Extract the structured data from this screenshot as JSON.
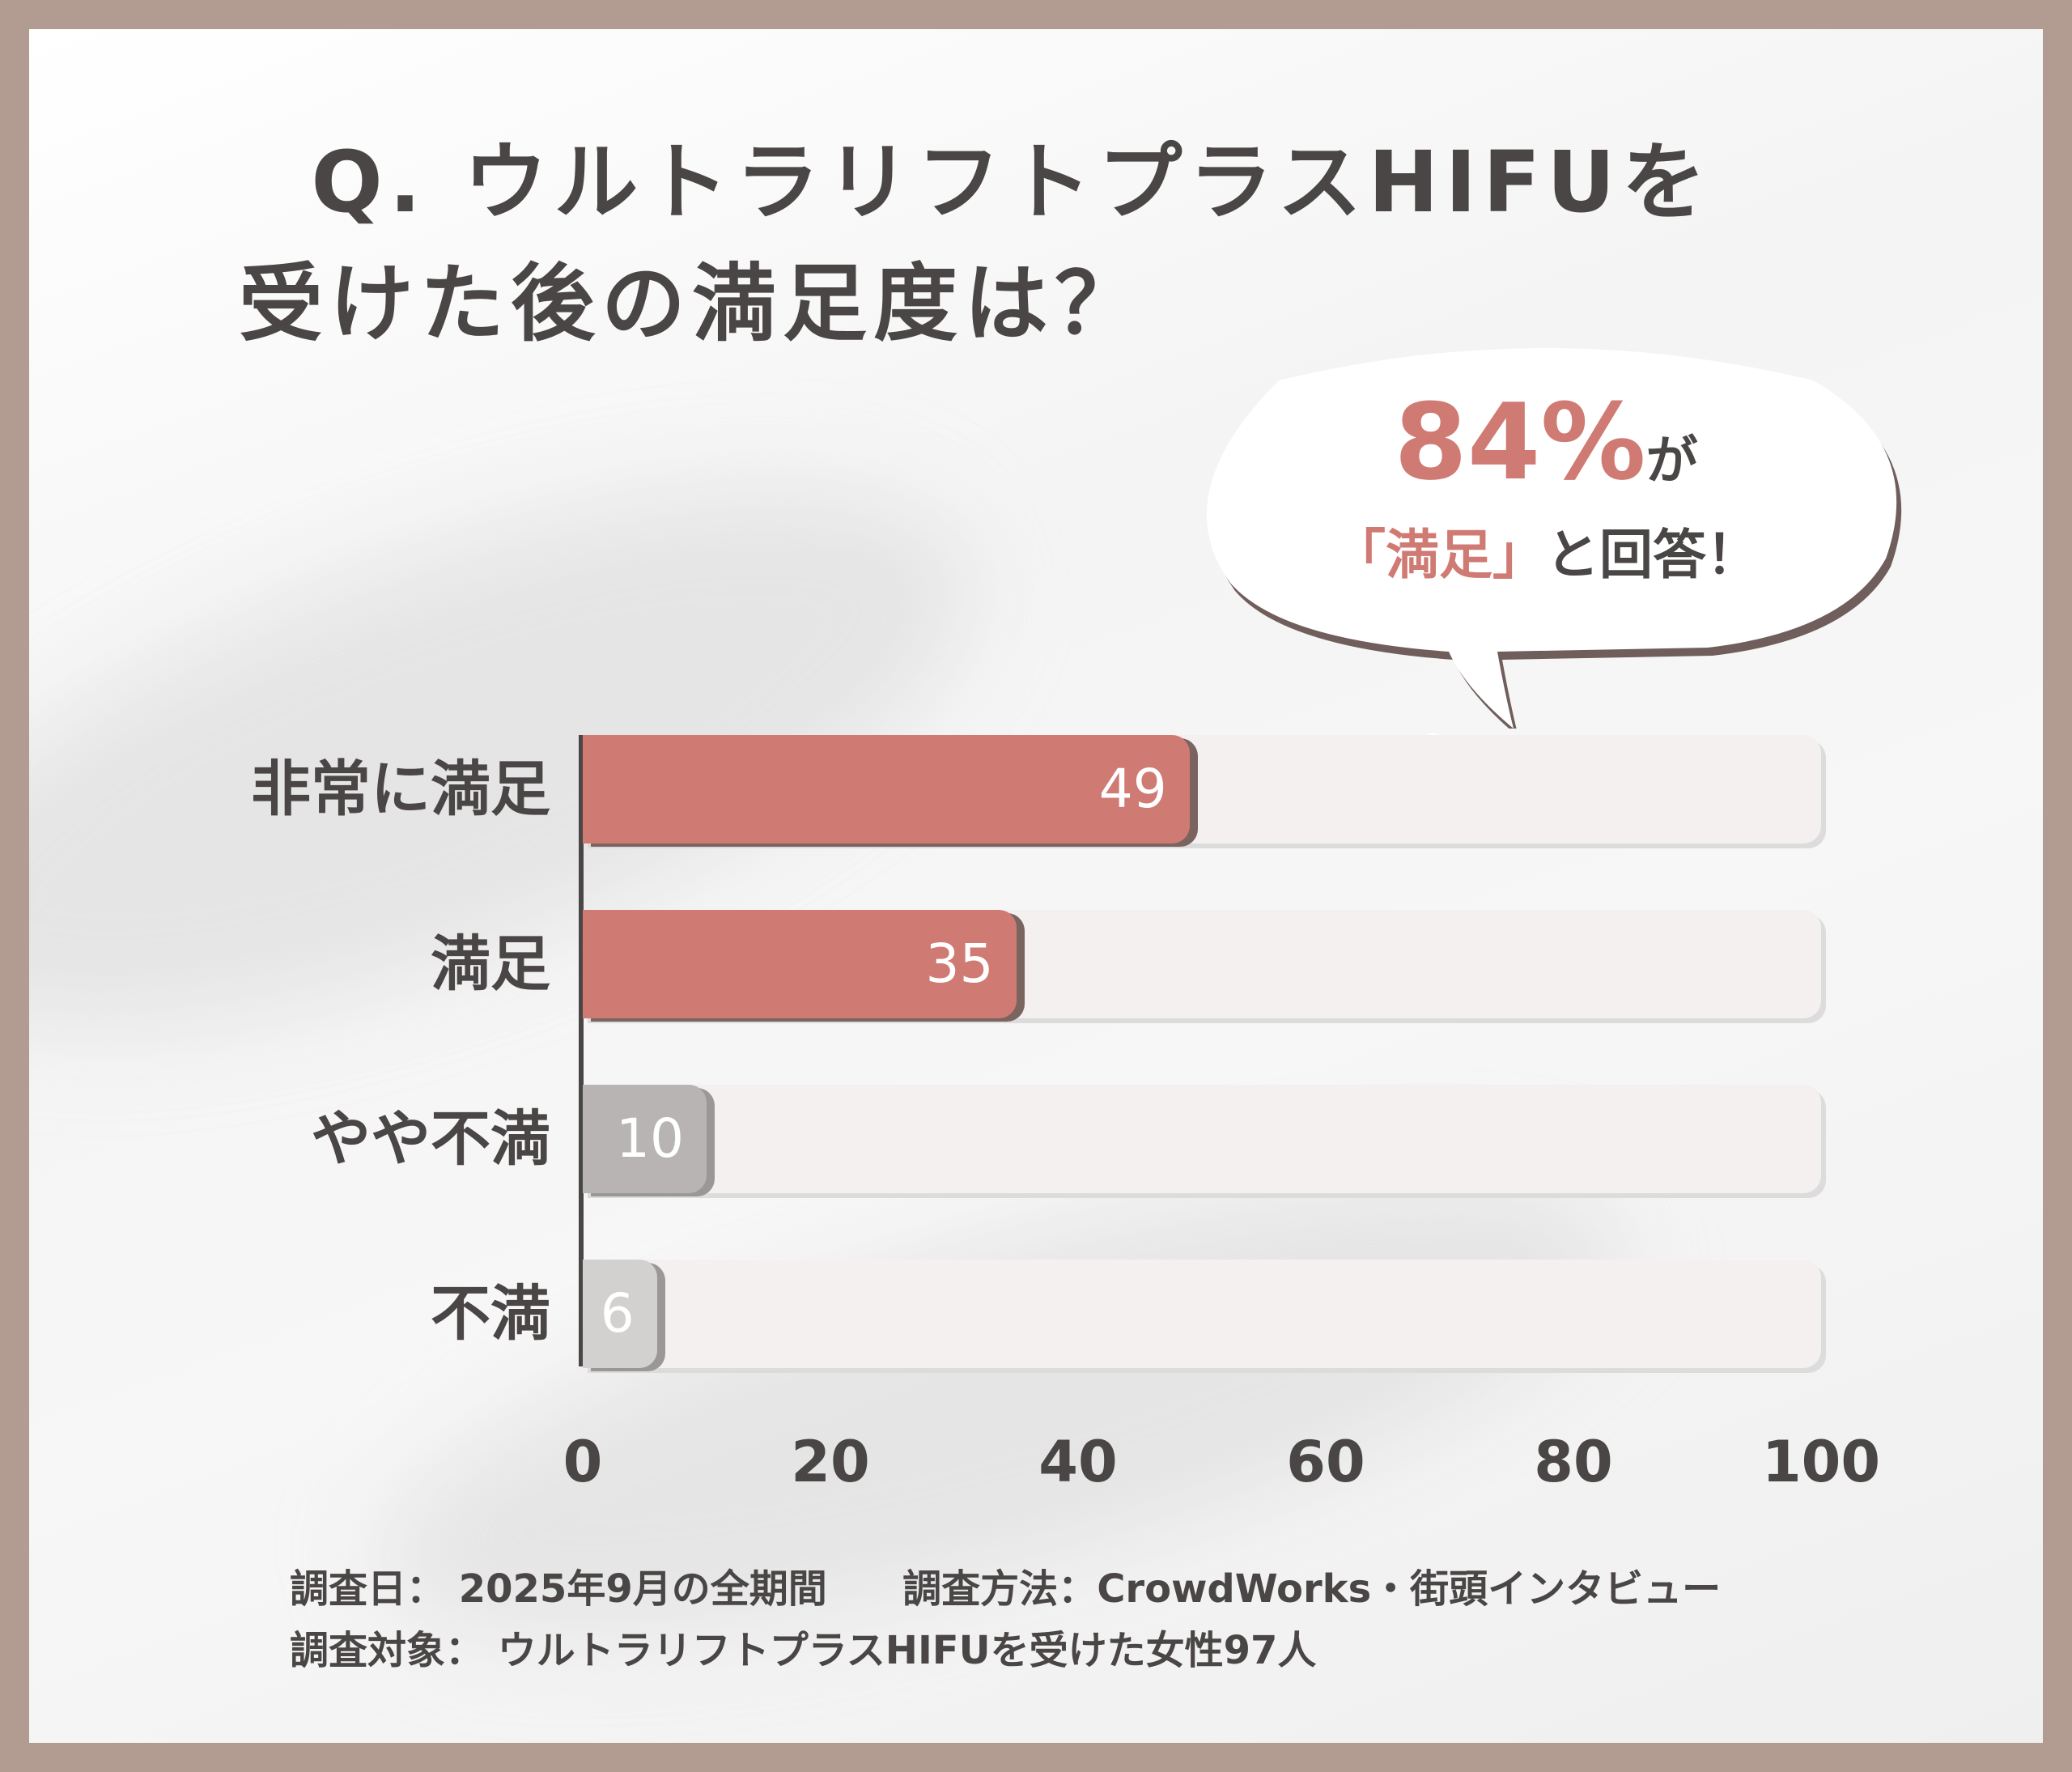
{
  "title": {
    "line1": "Q. ウルトラリフトプラスHIFUを",
    "line2": "受けた後の満足度は？"
  },
  "callout": {
    "percent": "84%",
    "ga": "が",
    "quote": "「満足」",
    "rest": "と回答！"
  },
  "chart_data": {
    "type": "bar",
    "orientation": "horizontal",
    "categories": [
      "非常に満足",
      "満足",
      "やや不満",
      "不満"
    ],
    "values": [
      49,
      35,
      10,
      6
    ],
    "xlim": [
      0,
      100
    ],
    "xticks": [
      "0",
      "20",
      "40",
      "60",
      "80",
      "100"
    ],
    "colors": [
      "#d07a74",
      "#d07a74",
      "#b7b4b3",
      "#d3d1d0"
    ],
    "grid": false
  },
  "footer": {
    "date_label": "調査日：",
    "date_value": "2025年9月の全期間",
    "method_label": "調査方法：",
    "method_value": "CrowdWorks・街頭インタビュー",
    "target_label": "調査対象：",
    "target_value": "ウルトラリフトプラスHIFUを受けた女性97人"
  }
}
